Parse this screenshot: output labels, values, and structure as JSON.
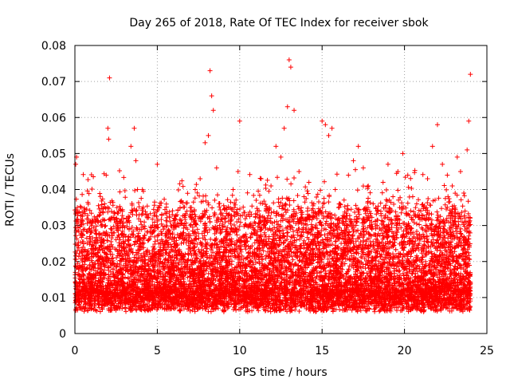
{
  "chart_data": {
    "type": "scatter",
    "title": "Day 265 of 2018, Rate Of TEC Index for receiver sbok",
    "xlabel": "GPS time / hours",
    "ylabel": "ROTI / TECUs",
    "xlim": [
      0,
      25
    ],
    "ylim": [
      0,
      0.08
    ],
    "x_ticks": [
      0,
      5,
      10,
      15,
      20,
      25
    ],
    "x_tick_labels": [
      "0",
      "5",
      "10",
      "15",
      "20",
      "25"
    ],
    "y_ticks": [
      0,
      0.01,
      0.02,
      0.03,
      0.04,
      0.05,
      0.06,
      0.07,
      0.08
    ],
    "y_tick_labels": [
      "0",
      "0.01",
      "0.02",
      "0.03",
      "0.04",
      "0.05",
      "0.06",
      "0.07",
      "0.08"
    ],
    "grid": true,
    "marker": "+",
    "series": [
      {
        "name": "ROTI",
        "color": "#ff0000",
        "x": [
          0.05,
          0.1,
          0.15,
          0.2,
          0.25,
          0.3,
          0.4,
          0.5,
          0.6,
          0.8,
          1.0,
          1.2,
          1.4,
          1.6,
          1.8,
          1.9,
          2.0,
          2.05,
          2.1,
          2.2,
          2.4,
          2.6,
          2.8,
          3.0,
          3.2,
          3.4,
          3.6,
          3.7,
          3.8,
          3.9,
          4.0,
          4.2,
          4.5,
          4.8,
          5.0,
          5.2,
          5.5,
          5.8,
          6.0,
          6.3,
          6.6,
          7.0,
          7.3,
          7.6,
          7.9,
          8.1,
          8.2,
          8.3,
          8.4,
          8.6,
          8.8,
          9.0,
          9.3,
          9.6,
          9.9,
          10.0,
          10.2,
          10.5,
          10.8,
          11.0,
          11.3,
          11.6,
          11.9,
          12.2,
          12.5,
          12.7,
          12.9,
          13.0,
          13.1,
          13.3,
          13.6,
          13.9,
          14.2,
          14.5,
          14.8,
          15.0,
          15.2,
          15.4,
          15.6,
          15.8,
          16.0,
          16.3,
          16.6,
          16.9,
          17.2,
          17.5,
          17.8,
          18.1,
          18.4,
          18.7,
          19.0,
          19.3,
          19.6,
          19.9,
          20.2,
          20.5,
          20.8,
          21.1,
          21.4,
          21.7,
          22.0,
          22.3,
          22.6,
          22.9,
          23.2,
          23.4,
          23.6,
          23.8,
          23.9,
          24.0
        ],
        "y": [
          0.047,
          0.049,
          0.035,
          0.031,
          0.012,
          0.016,
          0.009,
          0.011,
          0.007,
          0.01,
          0.012,
          0.009,
          0.011,
          0.013,
          0.036,
          0.044,
          0.057,
          0.054,
          0.071,
          0.028,
          0.012,
          0.014,
          0.017,
          0.025,
          0.032,
          0.052,
          0.057,
          0.048,
          0.04,
          0.033,
          0.025,
          0.018,
          0.014,
          0.016,
          0.047,
          0.02,
          0.015,
          0.018,
          0.029,
          0.022,
          0.028,
          0.035,
          0.04,
          0.043,
          0.053,
          0.055,
          0.073,
          0.066,
          0.062,
          0.046,
          0.029,
          0.025,
          0.033,
          0.04,
          0.045,
          0.059,
          0.027,
          0.021,
          0.03,
          0.037,
          0.043,
          0.034,
          0.041,
          0.052,
          0.049,
          0.057,
          0.063,
          0.076,
          0.074,
          0.062,
          0.045,
          0.038,
          0.042,
          0.036,
          0.033,
          0.059,
          0.058,
          0.055,
          0.057,
          0.04,
          0.035,
          0.031,
          0.044,
          0.048,
          0.052,
          0.046,
          0.041,
          0.036,
          0.034,
          0.042,
          0.047,
          0.038,
          0.045,
          0.05,
          0.044,
          0.038,
          0.033,
          0.029,
          0.043,
          0.052,
          0.058,
          0.047,
          0.044,
          0.041,
          0.049,
          0.045,
          0.039,
          0.051,
          0.059,
          0.072
        ]
      }
    ],
    "background_density": {
      "description": "dense cloud of points across 0-24 hours",
      "x_range": [
        0,
        24
      ],
      "y_range": [
        0.003,
        0.03
      ],
      "typical_y": 0.012
    }
  }
}
